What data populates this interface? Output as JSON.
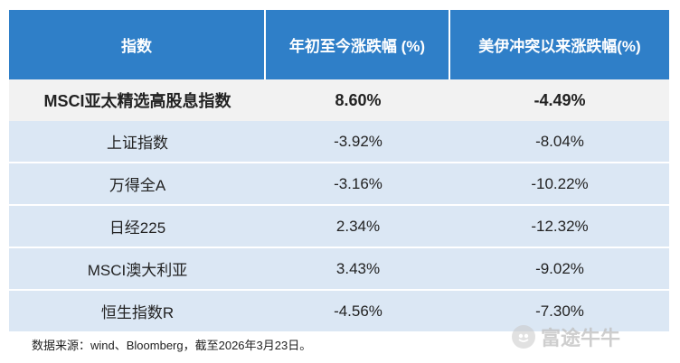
{
  "table": {
    "headers": [
      "指数",
      "年初至今涨跌幅 (%)",
      "美伊冲突以来涨跌幅(%)"
    ],
    "highlight": {
      "name": "MSCI亚太精选高股息指数",
      "ytd": "8.60%",
      "since_conflict": "-4.49%"
    },
    "rows": [
      {
        "name": "上证指数",
        "ytd": "-3.92%",
        "since_conflict": "-8.04%"
      },
      {
        "name": "万得全A",
        "ytd": "-3.16%",
        "since_conflict": "-10.22%"
      },
      {
        "name": "日经225",
        "ytd": "2.34%",
        "since_conflict": "-12.32%"
      },
      {
        "name": "MSCI澳大利亚",
        "ytd": "3.43%",
        "since_conflict": "-9.02%"
      },
      {
        "name": "恒生指数R",
        "ytd": "-4.56%",
        "since_conflict": "-7.30%"
      }
    ]
  },
  "footer": {
    "source": "数据来源：wind、Bloomberg，截至2026年3月23日。"
  },
  "watermark": {
    "text": "富途牛牛"
  },
  "colors": {
    "header_bg": "#2f7fc8",
    "row_bg": "#dbe7f4",
    "highlight_bg": "#f2f2f2"
  }
}
